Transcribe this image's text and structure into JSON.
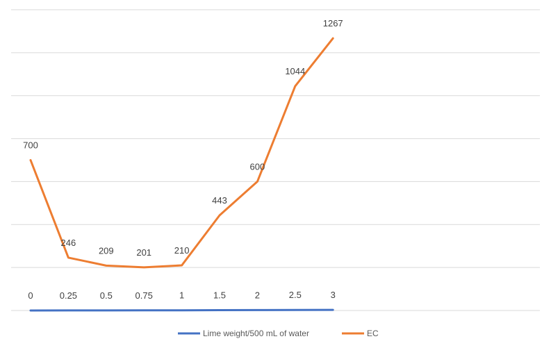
{
  "chart_data": {
    "type": "line",
    "title": "",
    "xlabel": "",
    "ylabel": "",
    "ylim": [
      0,
      1400
    ],
    "grid": true,
    "legend_placement": "bottom",
    "series": [
      {
        "name": "Lime weight/500 mL of water",
        "color": "#4472C4",
        "values": [
          0,
          0.25,
          0.5,
          0.75,
          1,
          1.5,
          2,
          2.5,
          3
        ],
        "labels": [
          "0",
          "0.25",
          "0.5",
          "0.75",
          "1",
          "1.5",
          "2",
          "2.5",
          "3"
        ]
      },
      {
        "name": "EC",
        "color": "#ED7D31",
        "values": [
          700,
          246,
          209,
          201,
          210,
          443,
          600,
          1044,
          1267
        ],
        "labels": [
          "700",
          "246",
          "209",
          "201",
          "210",
          "443",
          "600",
          "1044",
          "1267"
        ]
      }
    ]
  }
}
